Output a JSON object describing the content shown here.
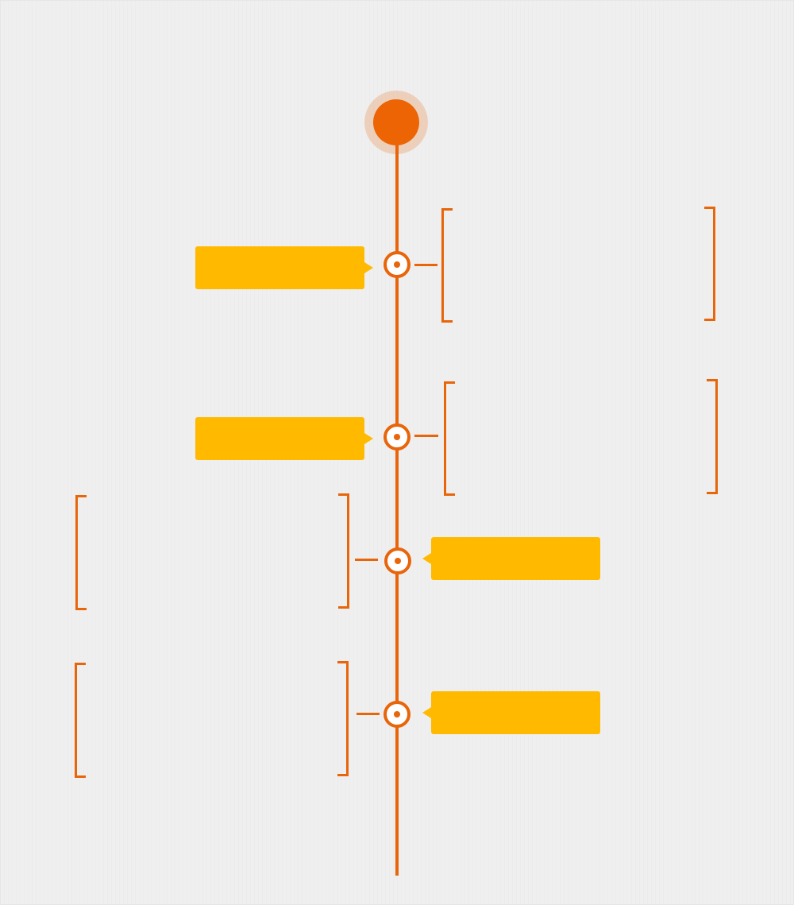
{
  "colors": {
    "accent": "#e8650a",
    "label_fill": "#ffba00",
    "background": "#efefef"
  },
  "timeline": {
    "start_node": {
      "icon": "start-circle-icon"
    },
    "items": [
      {
        "side": "right-text",
        "label": "",
        "text": "",
        "node_icon": "timeline-node-icon"
      },
      {
        "side": "right-text",
        "label": "",
        "text": "",
        "node_icon": "timeline-node-icon"
      },
      {
        "side": "left-text",
        "label": "",
        "text": "",
        "node_icon": "timeline-node-icon"
      },
      {
        "side": "left-text",
        "label": "",
        "text": "",
        "node_icon": "timeline-node-icon"
      }
    ]
  }
}
